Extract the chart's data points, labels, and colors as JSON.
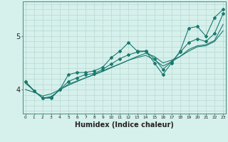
{
  "xlabel": "Humidex (Indice chaleur)",
  "bg_color": "#d6f0ec",
  "grid_color": "#b8d8d2",
  "line_color": "#1a7a6e",
  "x_ticks": [
    0,
    1,
    2,
    3,
    4,
    5,
    6,
    7,
    8,
    9,
    10,
    11,
    12,
    13,
    14,
    15,
    16,
    17,
    18,
    19,
    20,
    21,
    22,
    23
  ],
  "y_ticks": [
    4,
    5
  ],
  "ylim": [
    3.55,
    5.65
  ],
  "xlim": [
    -0.3,
    23.3
  ],
  "series": [
    [
      4.15,
      3.98,
      3.84,
      3.84,
      4.0,
      4.28,
      4.32,
      4.32,
      4.35,
      4.42,
      4.6,
      4.72,
      4.88,
      4.72,
      4.72,
      4.5,
      4.28,
      4.5,
      4.72,
      5.15,
      5.18,
      5.0,
      5.35,
      5.5
    ],
    [
      4.15,
      3.98,
      3.84,
      3.85,
      4.0,
      4.15,
      4.22,
      4.28,
      4.3,
      4.38,
      4.48,
      4.58,
      4.65,
      4.7,
      4.72,
      4.58,
      4.38,
      4.52,
      4.7,
      4.88,
      4.95,
      4.9,
      5.05,
      5.42
    ],
    [
      4.12,
      3.98,
      3.84,
      3.87,
      3.99,
      4.1,
      4.16,
      4.22,
      4.28,
      4.34,
      4.41,
      4.48,
      4.55,
      4.6,
      4.64,
      4.56,
      4.44,
      4.52,
      4.62,
      4.75,
      4.82,
      4.84,
      4.92,
      5.22
    ],
    [
      4.0,
      3.95,
      3.88,
      3.92,
      4.0,
      4.08,
      4.15,
      4.22,
      4.28,
      4.35,
      4.42,
      4.48,
      4.55,
      4.62,
      4.68,
      4.62,
      4.5,
      4.55,
      4.62,
      4.72,
      4.8,
      4.82,
      4.9,
      5.1
    ]
  ],
  "markers": [
    true,
    true,
    false,
    false
  ]
}
